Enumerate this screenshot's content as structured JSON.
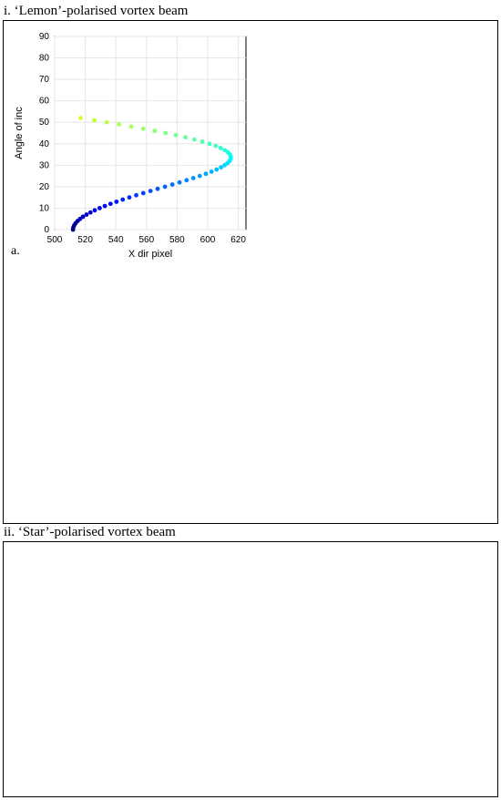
{
  "sections": [
    {
      "title": "i. ‘Lemon’-polarised vortex beam"
    },
    {
      "title": "ii. ‘Star’-polarised vortex beam"
    }
  ],
  "chart_data": [
    {
      "id": "lemon-a",
      "panel_label": "a.",
      "type": "scatter",
      "xlabel": "X dir pixel",
      "ylabel": "Angle of inc",
      "xlim": [
        500,
        625
      ],
      "ylim": [
        0,
        90
      ],
      "x_ticks": [
        "500",
        "520",
        "540",
        "560",
        "580",
        "600",
        "620"
      ],
      "x_tick_values": [
        500,
        520,
        540,
        560,
        580,
        600,
        620
      ],
      "y_ticks": [
        "0",
        "10",
        "20",
        "30",
        "40",
        "50",
        "60",
        "70",
        "80",
        "90"
      ],
      "y_tick_values": [
        0,
        10,
        20,
        30,
        40,
        50,
        60,
        70,
        80,
        90
      ],
      "colormap": "jet",
      "color_by": "y",
      "series": [
        {
          "x": [
            512,
            512.2,
            512.8,
            513.7,
            515,
            516.6,
            518.5,
            520.8,
            523.4,
            526.2,
            529.4,
            532.8,
            536.5,
            540.4,
            544.5,
            548.8,
            553.3,
            557.9,
            562.6,
            567.3,
            572.1,
            576.9,
            581.6,
            586.2,
            590.6,
            594.8,
            598.8,
            602.5,
            605.8,
            608.7,
            611.1,
            613,
            614.3,
            615,
            615.1,
            614.5,
            613.2,
            611.2,
            608.5,
            605.2,
            601.2,
            596.5,
            591.3,
            585.5,
            579.2,
            572.5,
            565.3,
            557.9,
            550.1,
            542.1,
            534,
            525.9,
            517
          ],
          "y": [
            0,
            1,
            2,
            3,
            4,
            5,
            6,
            7,
            8,
            9,
            10,
            11,
            12,
            13,
            14,
            15,
            16,
            17,
            18,
            19,
            20,
            21,
            22,
            23,
            24,
            25,
            26,
            27,
            28,
            29,
            30,
            31,
            32,
            33,
            34,
            35,
            36,
            37,
            38,
            39,
            40,
            41,
            42,
            43,
            44,
            45,
            46,
            47,
            48,
            49,
            50,
            51,
            52
          ]
        }
      ]
    }
  ]
}
